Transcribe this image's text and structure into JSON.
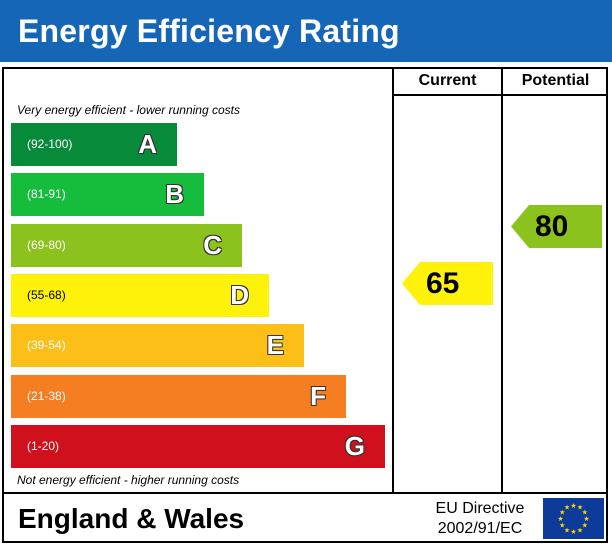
{
  "chart_data": {
    "type": "bar",
    "title": "Energy Efficiency Rating",
    "top_note": "Very energy efficient - lower running costs",
    "bottom_note": "Not energy efficient - higher running costs",
    "columns": [
      "Current",
      "Potential"
    ],
    "bands": [
      {
        "letter": "A",
        "range": "(92-100)",
        "color": "#078a3a"
      },
      {
        "letter": "B",
        "range": "(81-91)",
        "color": "#16bd3c"
      },
      {
        "letter": "C",
        "range": "(69-80)",
        "color": "#8cc21e"
      },
      {
        "letter": "D",
        "range": "(55-68)",
        "color": "#fef20a"
      },
      {
        "letter": "E",
        "range": "(39-54)",
        "color": "#fbbf17"
      },
      {
        "letter": "F",
        "range": "(21-38)",
        "color": "#f47e21"
      },
      {
        "letter": "G",
        "range": "(1-20)",
        "color": "#d0101c"
      }
    ],
    "current": {
      "value": "65",
      "band": "D",
      "color": "#fef20a"
    },
    "potential": {
      "value": "80",
      "band": "C",
      "color": "#8cc21e"
    }
  },
  "footer": {
    "country": "England & Wales",
    "directive_line1": "EU Directive",
    "directive_line2": "2002/91/EC",
    "flag_color": "#0c3b99",
    "star_color": "#ffd500"
  }
}
